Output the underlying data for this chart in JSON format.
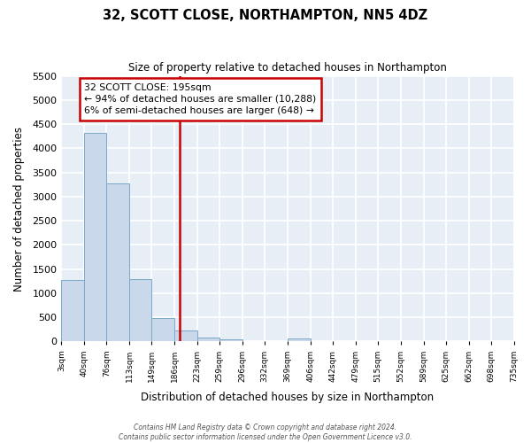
{
  "title": "32, SCOTT CLOSE, NORTHAMPTON, NN5 4DZ",
  "subtitle": "Size of property relative to detached houses in Northampton",
  "xlabel": "Distribution of detached houses by size in Northampton",
  "ylabel": "Number of detached properties",
  "bin_labels": [
    "3sqm",
    "40sqm",
    "76sqm",
    "113sqm",
    "149sqm",
    "186sqm",
    "223sqm",
    "259sqm",
    "296sqm",
    "332sqm",
    "369sqm",
    "406sqm",
    "442sqm",
    "479sqm",
    "515sqm",
    "552sqm",
    "589sqm",
    "625sqm",
    "662sqm",
    "698sqm",
    "735sqm"
  ],
  "bar_values": [
    1270,
    4310,
    3280,
    1290,
    490,
    230,
    90,
    50,
    0,
    0,
    60,
    0,
    0,
    0,
    0,
    0,
    0,
    0,
    0,
    0
  ],
  "bar_color": "#c9d9eb",
  "bar_edge_color": "#7aaac8",
  "ylim": [
    0,
    5500
  ],
  "yticks": [
    0,
    500,
    1000,
    1500,
    2000,
    2500,
    3000,
    3500,
    4000,
    4500,
    5000,
    5500
  ],
  "property_line_x": 195,
  "property_line_label": "32 SCOTT CLOSE: 195sqm",
  "annotation_line1": "← 94% of detached houses are smaller (10,288)",
  "annotation_line2": "6% of semi-detached houses are larger (648) →",
  "annotation_box_facecolor": "#ffffff",
  "annotation_box_edgecolor": "#cc0000",
  "vline_color": "#cc0000",
  "plot_bg_color": "#e8eef6",
  "fig_bg_color": "#ffffff",
  "grid_color": "#ffffff",
  "footer_text": "Contains HM Land Registry data © Crown copyright and database right 2024.\nContains public sector information licensed under the Open Government Licence v3.0.",
  "bin_edges": [
    3,
    40,
    76,
    113,
    149,
    186,
    223,
    259,
    296,
    332,
    369,
    406,
    442,
    479,
    515,
    552,
    589,
    625,
    662,
    698,
    735
  ]
}
